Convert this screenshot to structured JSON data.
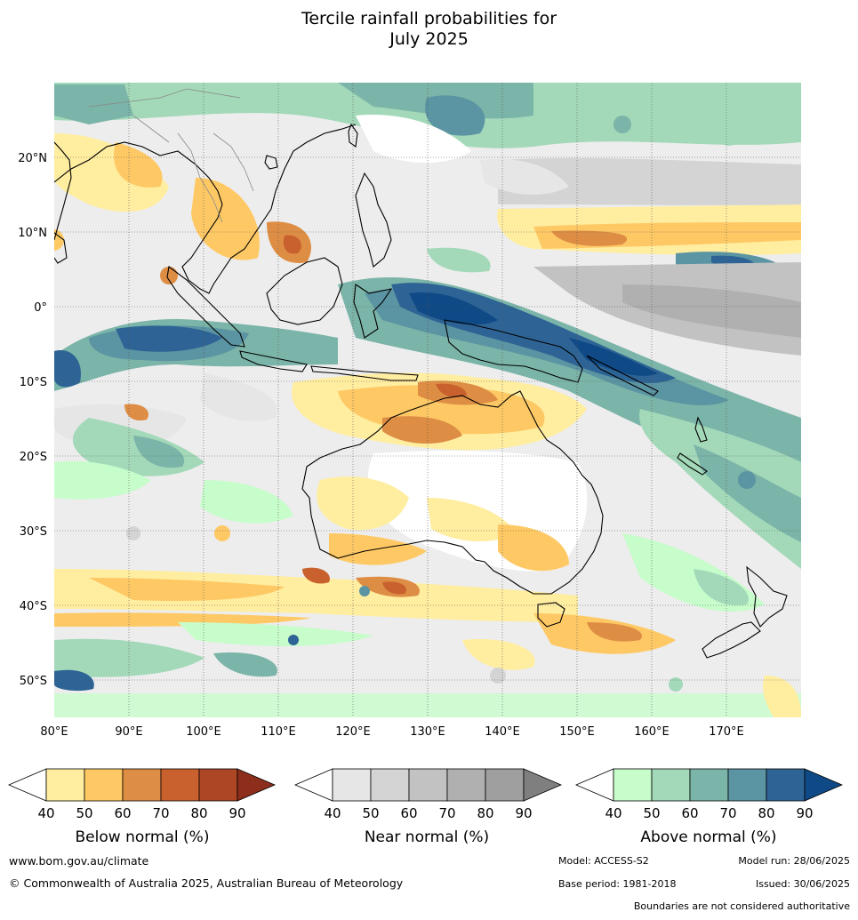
{
  "title": {
    "line1": "Tercile rainfall probabilities for",
    "line2": "July 2025"
  },
  "map": {
    "lat_labels": [
      "20°N",
      "10°N",
      "0°",
      "10°S",
      "20°S",
      "30°S",
      "40°S",
      "50°S"
    ],
    "lon_labels": [
      "80°E",
      "90°E",
      "100°E",
      "110°E",
      "120°E",
      "130°E",
      "140°E",
      "150°E",
      "160°E",
      "170°E"
    ],
    "extent": {
      "lon_min": 80,
      "lon_max": 180,
      "lat_min": -55,
      "lat_max": 30
    }
  },
  "colorbars": [
    {
      "id": "below",
      "label": "Below normal (%)",
      "ticks": [
        "40",
        "50",
        "60",
        "70",
        "80",
        "90"
      ],
      "colors": [
        "#ffffff",
        "#ffeda0",
        "#fec965",
        "#de8e44",
        "#c9612f",
        "#ac4625",
        "#8c2e1b"
      ]
    },
    {
      "id": "near",
      "label": "Near normal (%)",
      "ticks": [
        "40",
        "50",
        "60",
        "70",
        "80",
        "90"
      ],
      "colors": [
        "#ffffff",
        "#e6e6e6",
        "#d4d4d4",
        "#c2c2c2",
        "#b0b0b0",
        "#9f9f9f",
        "#7f7f7f"
      ]
    },
    {
      "id": "above",
      "label": "Above normal (%)",
      "ticks": [
        "40",
        "50",
        "60",
        "70",
        "80",
        "90"
      ],
      "colors": [
        "#ffffff",
        "#c7fccb",
        "#a3d9b9",
        "#7bb4a8",
        "#5b94a2",
        "#2e6495",
        "#0f4a86"
      ]
    }
  ],
  "footer": {
    "website": "www.bom.gov.au/climate",
    "copyright": "© Commonwealth of Australia 2025, Australian Bureau of Meteorology",
    "model": "Model: ACCESS-S2",
    "model_run": "Model run: 28/06/2025",
    "base_period": "Base period: 1981-2018",
    "issued": "Issued: 30/06/2025",
    "disclaimer": "Boundaries are not considered authoritative"
  }
}
